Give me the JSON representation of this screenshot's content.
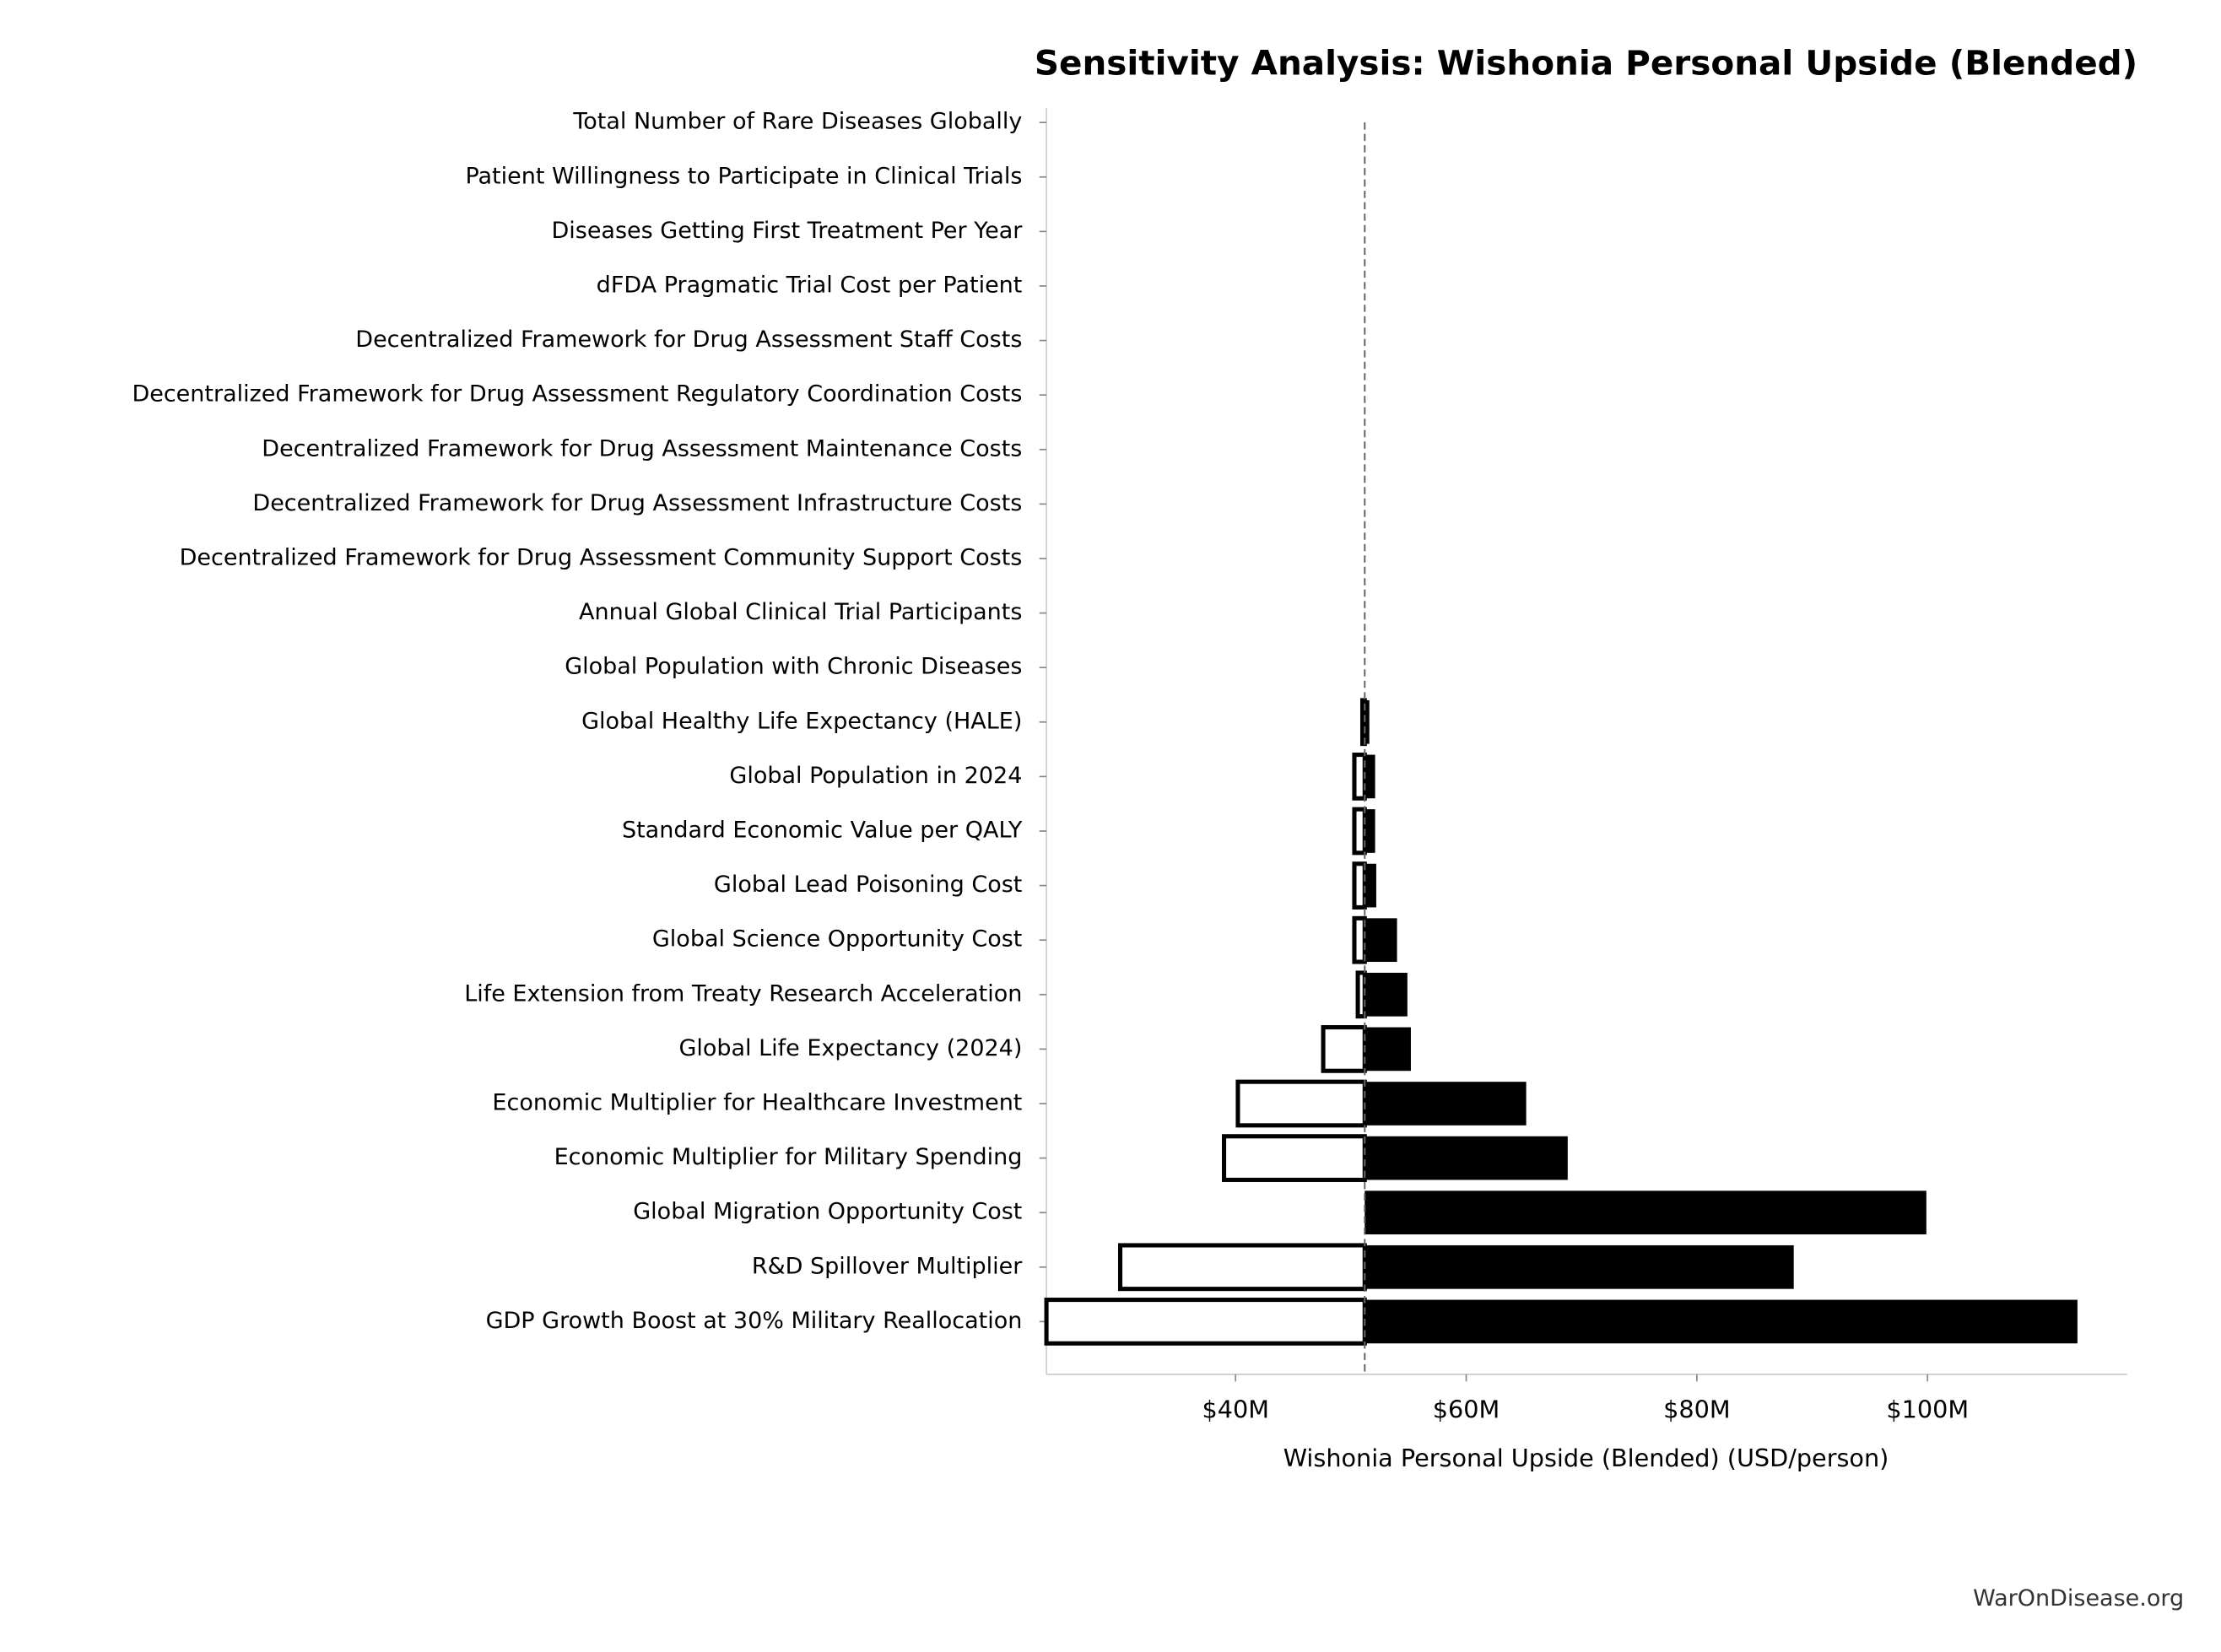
{
  "chart_data": {
    "type": "tornado",
    "title": "Sensitivity Analysis: Wishonia Personal Upside (Blended)",
    "x_label": "Wishonia Personal Upside (Blended) (USD/person)",
    "footer": "WarOnDisease.org",
    "categories": [
      "Total Number of Rare Diseases Globally",
      "Patient Willingness to Participate in Clinical Trials",
      "Diseases Getting First Treatment Per Year",
      "dFDA Pragmatic Trial Cost per Patient",
      "Decentralized Framework for Drug Assessment Staff Costs",
      "Decentralized Framework for Drug Assessment Regulatory Coordination Costs",
      "Decentralized Framework for Drug Assessment Maintenance Costs",
      "Decentralized Framework for Drug Assessment Infrastructure Costs",
      "Decentralized Framework for Drug Assessment Community Support Costs",
      "Annual Global Clinical Trial Participants",
      "Global Population with Chronic Diseases",
      "Global Healthy Life Expectancy (HALE)",
      "Global Population in 2024",
      "Standard Economic Value per QALY",
      "Global Lead Poisoning Cost",
      "Global Science Opportunity Cost",
      "Life Extension from Treaty Research Acceleration",
      "Global Life Expectancy (2024)",
      "Economic Multiplier for Healthcare Investment",
      "Economic Multiplier for Military Spending",
      "Global Migration Opportunity Cost",
      "R&D Spillover Multiplier",
      "GDP Growth Boost at 30% Military Reallocation"
    ],
    "baseline": 51200000,
    "low": [
      51200000,
      51200000,
      51200000,
      51200000,
      51200000,
      51200000,
      51200000,
      51200000,
      51200000,
      51200000,
      51200000,
      51000000,
      50300000,
      50300000,
      50300000,
      50300000,
      50600000,
      47600000,
      40200000,
      39000000,
      51200000,
      30000000,
      23600000
    ],
    "high": [
      51200000,
      51200000,
      51200000,
      51200000,
      51200000,
      51200000,
      51200000,
      51200000,
      51200000,
      51200000,
      51200000,
      51600000,
      52100000,
      52100000,
      52200000,
      54000000,
      54900000,
      55200000,
      65200000,
      68800000,
      99900000,
      88400000,
      113000000
    ],
    "low_color": "#ffffff",
    "high_color": "#000000",
    "xlim": [
      23600000,
      117300000
    ],
    "xticks": [
      {
        "value": 40000000,
        "label": "$40M"
      },
      {
        "value": 60000000,
        "label": "$60M"
      },
      {
        "value": 80000000,
        "label": "$80M"
      },
      {
        "value": 100000000,
        "label": "$100M"
      }
    ]
  }
}
